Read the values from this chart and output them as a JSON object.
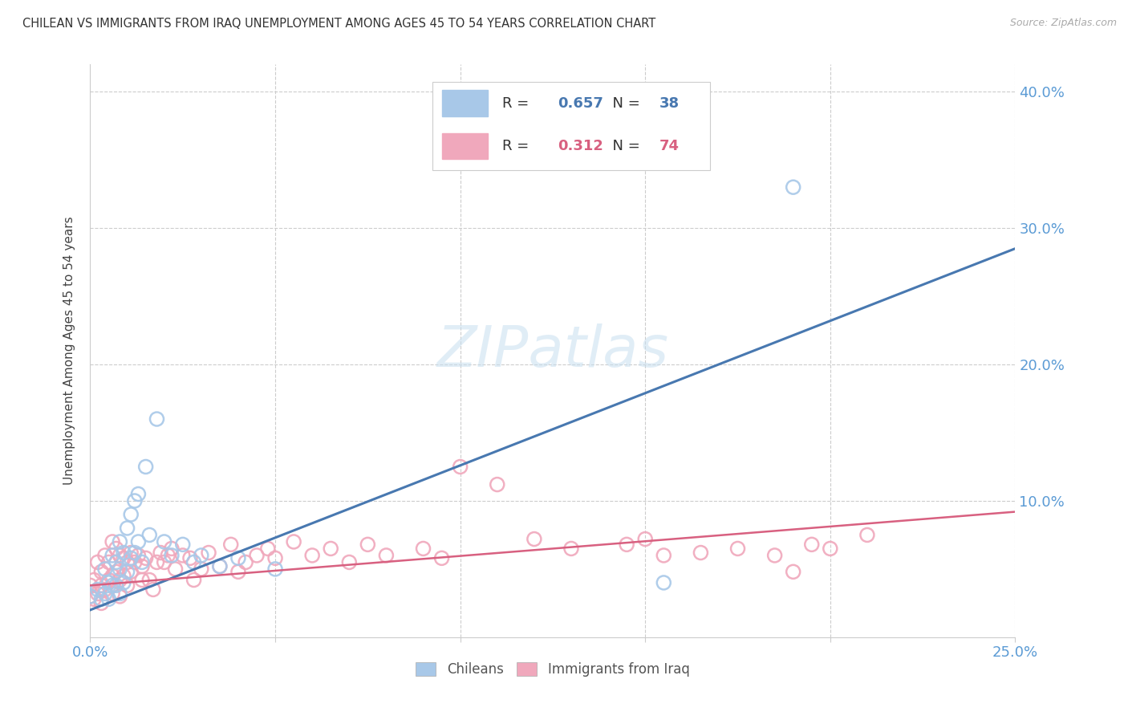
{
  "title": "CHILEAN VS IMMIGRANTS FROM IRAQ UNEMPLOYMENT AMONG AGES 45 TO 54 YEARS CORRELATION CHART",
  "source": "Source: ZipAtlas.com",
  "ylabel": "Unemployment Among Ages 45 to 54 years",
  "xlim": [
    0.0,
    0.25
  ],
  "ylim": [
    0.0,
    0.42
  ],
  "xticks": [
    0.0,
    0.05,
    0.1,
    0.15,
    0.2,
    0.25
  ],
  "yticks": [
    0.0,
    0.1,
    0.2,
    0.3,
    0.4
  ],
  "legend1_r": "0.657",
  "legend1_n": "38",
  "legend2_r": "0.312",
  "legend2_n": "74",
  "legend1_label": "Chileans",
  "legend2_label": "Immigrants from Iraq",
  "blue_color": "#a8c8e8",
  "pink_color": "#f0a8bc",
  "blue_line_color": "#4878b0",
  "pink_line_color": "#d86080",
  "axis_color": "#5b9bd5",
  "background_color": "#ffffff",
  "blue_line_x": [
    0.0,
    0.25
  ],
  "blue_line_y": [
    0.02,
    0.285
  ],
  "pink_line_x": [
    0.0,
    0.25
  ],
  "pink_line_y": [
    0.038,
    0.092
  ],
  "chileans_x": [
    0.0,
    0.002,
    0.003,
    0.004,
    0.004,
    0.005,
    0.005,
    0.006,
    0.006,
    0.007,
    0.007,
    0.008,
    0.008,
    0.008,
    0.009,
    0.009,
    0.01,
    0.01,
    0.011,
    0.011,
    0.012,
    0.012,
    0.013,
    0.013,
    0.014,
    0.015,
    0.016,
    0.018,
    0.02,
    0.022,
    0.025,
    0.028,
    0.03,
    0.035,
    0.04,
    0.05,
    0.155,
    0.19
  ],
  "chileans_y": [
    0.03,
    0.035,
    0.028,
    0.05,
    0.032,
    0.04,
    0.028,
    0.06,
    0.038,
    0.055,
    0.038,
    0.07,
    0.05,
    0.032,
    0.062,
    0.04,
    0.08,
    0.048,
    0.09,
    0.058,
    0.1,
    0.062,
    0.105,
    0.07,
    0.055,
    0.125,
    0.075,
    0.16,
    0.07,
    0.06,
    0.068,
    0.055,
    0.06,
    0.052,
    0.058,
    0.05,
    0.04,
    0.33
  ],
  "iraq_x": [
    0.0,
    0.0,
    0.001,
    0.001,
    0.002,
    0.002,
    0.003,
    0.003,
    0.003,
    0.004,
    0.004,
    0.005,
    0.005,
    0.006,
    0.006,
    0.006,
    0.007,
    0.007,
    0.008,
    0.008,
    0.008,
    0.009,
    0.009,
    0.01,
    0.01,
    0.011,
    0.011,
    0.012,
    0.013,
    0.014,
    0.014,
    0.015,
    0.016,
    0.017,
    0.018,
    0.019,
    0.02,
    0.021,
    0.022,
    0.023,
    0.025,
    0.027,
    0.028,
    0.03,
    0.032,
    0.035,
    0.038,
    0.04,
    0.042,
    0.045,
    0.048,
    0.05,
    0.055,
    0.06,
    0.065,
    0.07,
    0.075,
    0.08,
    0.09,
    0.095,
    0.1,
    0.11,
    0.12,
    0.13,
    0.145,
    0.15,
    0.155,
    0.165,
    0.175,
    0.185,
    0.19,
    0.195,
    0.2,
    0.21
  ],
  "iraq_y": [
    0.038,
    0.03,
    0.042,
    0.028,
    0.055,
    0.032,
    0.048,
    0.038,
    0.025,
    0.06,
    0.035,
    0.055,
    0.042,
    0.07,
    0.045,
    0.032,
    0.065,
    0.048,
    0.06,
    0.042,
    0.03,
    0.058,
    0.045,
    0.055,
    0.038,
    0.062,
    0.048,
    0.055,
    0.06,
    0.042,
    0.052,
    0.058,
    0.042,
    0.035,
    0.055,
    0.062,
    0.055,
    0.06,
    0.065,
    0.05,
    0.06,
    0.058,
    0.042,
    0.05,
    0.062,
    0.052,
    0.068,
    0.048,
    0.055,
    0.06,
    0.065,
    0.058,
    0.07,
    0.06,
    0.065,
    0.055,
    0.068,
    0.06,
    0.065,
    0.058,
    0.125,
    0.112,
    0.072,
    0.065,
    0.068,
    0.072,
    0.06,
    0.062,
    0.065,
    0.06,
    0.048,
    0.068,
    0.065,
    0.075
  ]
}
